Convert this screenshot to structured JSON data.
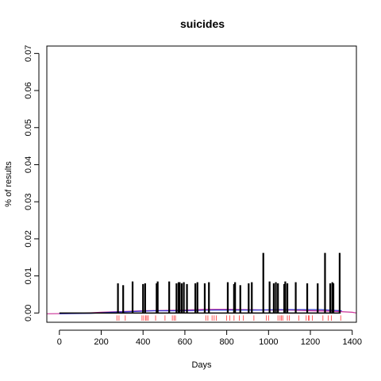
{
  "chart_data": {
    "type": "line",
    "title": "suicides",
    "xlabel": "Days",
    "ylabel": "% of results",
    "xlim": [
      -60,
      1420
    ],
    "ylim": [
      -0.0025,
      0.072
    ],
    "x_ticks": [
      0,
      200,
      400,
      600,
      800,
      1000,
      1200,
      1400
    ],
    "x_tick_labels": [
      "0",
      "200",
      "400",
      "600",
      "800",
      "1000",
      "1200",
      "1400"
    ],
    "y_ticks": [
      0.0,
      0.01,
      0.02,
      0.03,
      0.04,
      0.05,
      0.06,
      0.07
    ],
    "y_tick_labels": [
      "0.00",
      "0.01",
      "0.02",
      "0.03",
      "0.04",
      "0.05",
      "0.06",
      "0.07"
    ],
    "grid": false,
    "series": [
      {
        "style": "spikes",
        "color": "#000000",
        "x": [
          280,
          305,
          350,
          400,
          410,
          465,
          470,
          525,
          560,
          570,
          575,
          585,
          595,
          610,
          650,
          660,
          695,
          715,
          805,
          835,
          840,
          865,
          905,
          920,
          975,
          1005,
          1025,
          1035,
          1045,
          1075,
          1080,
          1090,
          1130,
          1185,
          1235,
          1270,
          1295,
          1305,
          1310,
          1340
        ],
        "values": [
          0.008,
          0.0075,
          0.0085,
          0.0078,
          0.008,
          0.008,
          0.0085,
          0.0085,
          0.008,
          0.0083,
          0.0083,
          0.008,
          0.0083,
          0.0078,
          0.008,
          0.0083,
          0.008,
          0.0083,
          0.0083,
          0.0078,
          0.0083,
          0.0075,
          0.008,
          0.0083,
          0.0162,
          0.0085,
          0.008,
          0.0083,
          0.008,
          0.0078,
          0.0085,
          0.008,
          0.0083,
          0.008,
          0.008,
          0.0162,
          0.008,
          0.0083,
          0.008,
          0.0162
        ]
      },
      {
        "style": "line",
        "color": "#cc3399",
        "x": [
          -60,
          100,
          200,
          300,
          400,
          500,
          600,
          700,
          800,
          900,
          1000,
          1100,
          1200,
          1300,
          1400,
          1420
        ],
        "values": [
          -0.0002,
          -0.0001,
          0.0002,
          0.0004,
          0.0006,
          0.0007,
          0.0008,
          0.001,
          0.001,
          0.0009,
          0.0008,
          0.0008,
          0.0006,
          0.0005,
          0.0002,
          0.0
        ]
      },
      {
        "style": "line",
        "color": "#3333cc",
        "x": [
          0,
          150,
          250,
          350,
          450,
          550,
          650,
          750,
          850,
          950,
          1050,
          1150,
          1250,
          1350
        ],
        "values": [
          -0.0002,
          -0.0001,
          0.0002,
          0.0004,
          0.0006,
          0.0006,
          0.0007,
          0.0008,
          0.0008,
          0.0008,
          0.0009,
          0.0009,
          0.0009,
          0.0006
        ]
      }
    ],
    "rug": {
      "color": "#ff3333",
      "x": [
        275,
        285,
        315,
        395,
        403,
        412,
        418,
        425,
        460,
        505,
        540,
        548,
        555,
        700,
        710,
        730,
        740,
        750,
        800,
        815,
        835,
        860,
        880,
        930,
        990,
        1000,
        1045,
        1055,
        1062,
        1068,
        1090,
        1100,
        1145,
        1180,
        1190,
        1195,
        1210,
        1260,
        1285,
        1300,
        1345
      ]
    }
  }
}
